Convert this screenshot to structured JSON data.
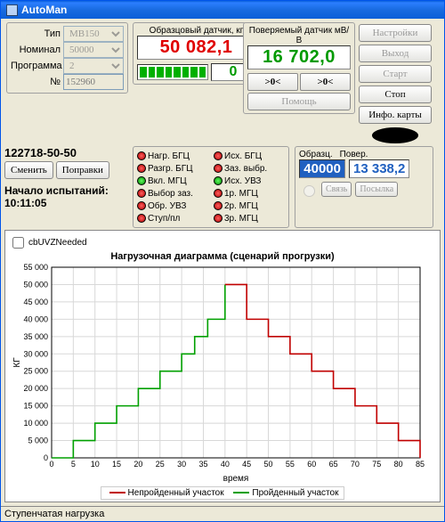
{
  "window": {
    "title": "AutoMan"
  },
  "params": {
    "type_label": "Тип",
    "type_value": "МВ150",
    "nom_label": "Номинал",
    "nom_value": "50000",
    "prog_label": "Программа",
    "prog_value": "2",
    "num_label": "№",
    "num_value": "152960"
  },
  "readout1": {
    "label": "Образцовый датчик, кг",
    "value": "50 082,1"
  },
  "readout2": {
    "label": "Поверяемый датчик мВ/В",
    "value": "16 702,0"
  },
  "zero_left": ">0<",
  "zero_right": ">0<",
  "counter": "0",
  "help": "Помощь",
  "item_code": "122718-50-50",
  "change": "Сменить",
  "corr": "Поправки",
  "start_label": "Начало испытаний:",
  "start_time": "10:11:05",
  "ind_col1": [
    "Нагр. БГЦ",
    "Разгр. БГЦ",
    "Вкл. МГЦ",
    "Выбор заз.",
    "Обр. УВЗ",
    "Ступ/пл"
  ],
  "ind_col1_state": [
    "r",
    "r",
    "g",
    "r",
    "r",
    "r"
  ],
  "ind_col2": [
    "Исх. БГЦ",
    "Заз. выбр.",
    "Исх. УВЗ",
    "1р. МГЦ",
    "2р. МГЦ",
    "3р. МГЦ"
  ],
  "ind_col2_state": [
    "r",
    "r",
    "g",
    "r",
    "r",
    "r"
  ],
  "pane": {
    "obr_label": "Образц.",
    "pov_label": "Повер.",
    "obr_val": "40000",
    "pov_val": "13 338,2",
    "svyaz": "Связь",
    "posylka": "Посылка"
  },
  "rbtns": {
    "settings": "Настройки",
    "exit": "Выход",
    "start": "Старт",
    "stop": "Стоп",
    "info": "Инфо. карты"
  },
  "checkbox": "cbUVZNeeded",
  "status": "Ступенчатая нагрузка",
  "chart": {
    "title": "Нагрузочная диаграмма (сценарий прогрузки)",
    "xlabel": "время",
    "ylabel": "КГ",
    "xlim": [
      0,
      85
    ],
    "ylim": [
      0,
      55000
    ],
    "xticks": [
      0,
      5,
      10,
      15,
      20,
      25,
      30,
      35,
      40,
      45,
      50,
      55,
      60,
      65,
      70,
      75,
      80,
      85
    ],
    "yticks": [
      0,
      5000,
      10000,
      15000,
      20000,
      25000,
      30000,
      35000,
      40000,
      45000,
      50000,
      55000
    ],
    "grid_color": "#d8d8d8",
    "axis_color": "#000",
    "series_done": {
      "color": "#00a000",
      "label": "Пройденный участок",
      "pts": [
        [
          0,
          0
        ],
        [
          5,
          0
        ],
        [
          5,
          5000
        ],
        [
          10,
          5000
        ],
        [
          10,
          10000
        ],
        [
          15,
          10000
        ],
        [
          15,
          15000
        ],
        [
          20,
          15000
        ],
        [
          20,
          20000
        ],
        [
          25,
          20000
        ],
        [
          25,
          25000
        ],
        [
          30,
          25000
        ],
        [
          30,
          30000
        ],
        [
          33,
          30000
        ],
        [
          33,
          35000
        ],
        [
          36,
          35000
        ],
        [
          36,
          40000
        ],
        [
          40,
          40000
        ],
        [
          40,
          50000
        ]
      ]
    },
    "series_todo": {
      "color": "#c00000",
      "label": "Непройденный участок",
      "pts": [
        [
          40,
          50000
        ],
        [
          45,
          50000
        ],
        [
          45,
          40000
        ],
        [
          50,
          40000
        ],
        [
          50,
          35000
        ],
        [
          55,
          35000
        ],
        [
          55,
          30000
        ],
        [
          60,
          30000
        ],
        [
          60,
          25000
        ],
        [
          65,
          25000
        ],
        [
          65,
          20000
        ],
        [
          70,
          20000
        ],
        [
          70,
          15000
        ],
        [
          75,
          15000
        ],
        [
          75,
          10000
        ],
        [
          80,
          10000
        ],
        [
          80,
          5000
        ],
        [
          85,
          5000
        ],
        [
          85,
          0
        ]
      ]
    }
  }
}
